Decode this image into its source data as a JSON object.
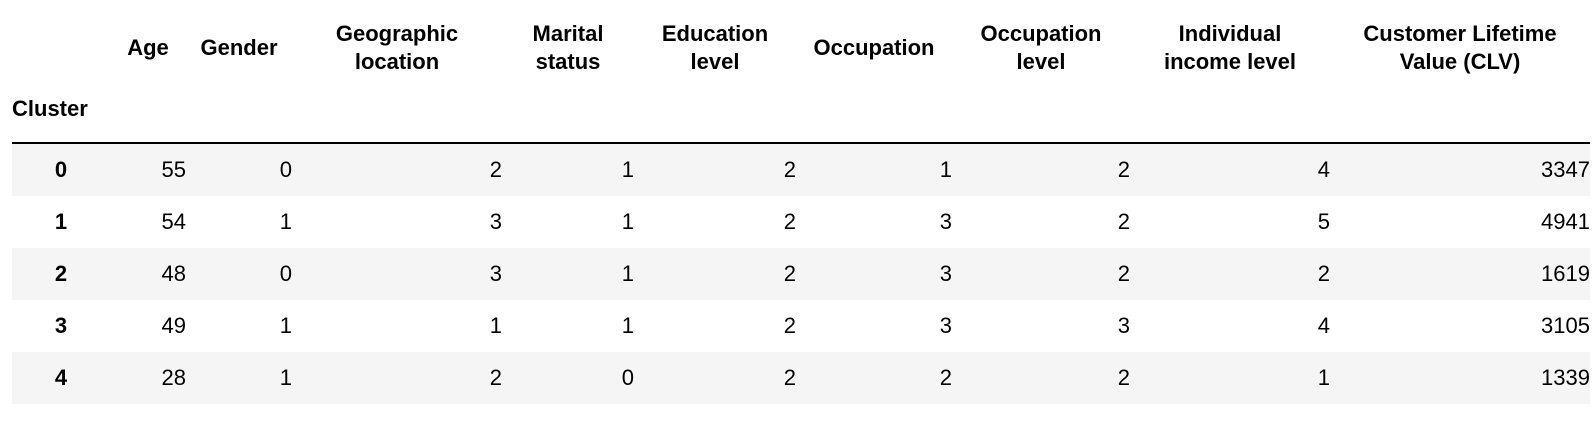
{
  "table": {
    "index_name": "Cluster",
    "columns": [
      "Age",
      "Gender",
      "Geographic\nlocation",
      "Marital\nstatus",
      "Education\nlevel",
      "Occupation",
      "Occupation\nlevel",
      "Individual\nincome level",
      "Customer Lifetime\nValue (CLV)"
    ],
    "rows": [
      {
        "index": "0",
        "cells": [
          "55",
          "0",
          "2",
          "1",
          "2",
          "1",
          "2",
          "4",
          "3347"
        ]
      },
      {
        "index": "1",
        "cells": [
          "54",
          "1",
          "3",
          "1",
          "2",
          "3",
          "2",
          "5",
          "4941"
        ]
      },
      {
        "index": "2",
        "cells": [
          "48",
          "0",
          "3",
          "1",
          "2",
          "3",
          "2",
          "2",
          "1619"
        ]
      },
      {
        "index": "3",
        "cells": [
          "49",
          "1",
          "1",
          "1",
          "2",
          "3",
          "3",
          "4",
          "3105"
        ]
      },
      {
        "index": "4",
        "cells": [
          "28",
          "1",
          "2",
          "0",
          "2",
          "2",
          "2",
          "1",
          "1339"
        ]
      }
    ]
  }
}
